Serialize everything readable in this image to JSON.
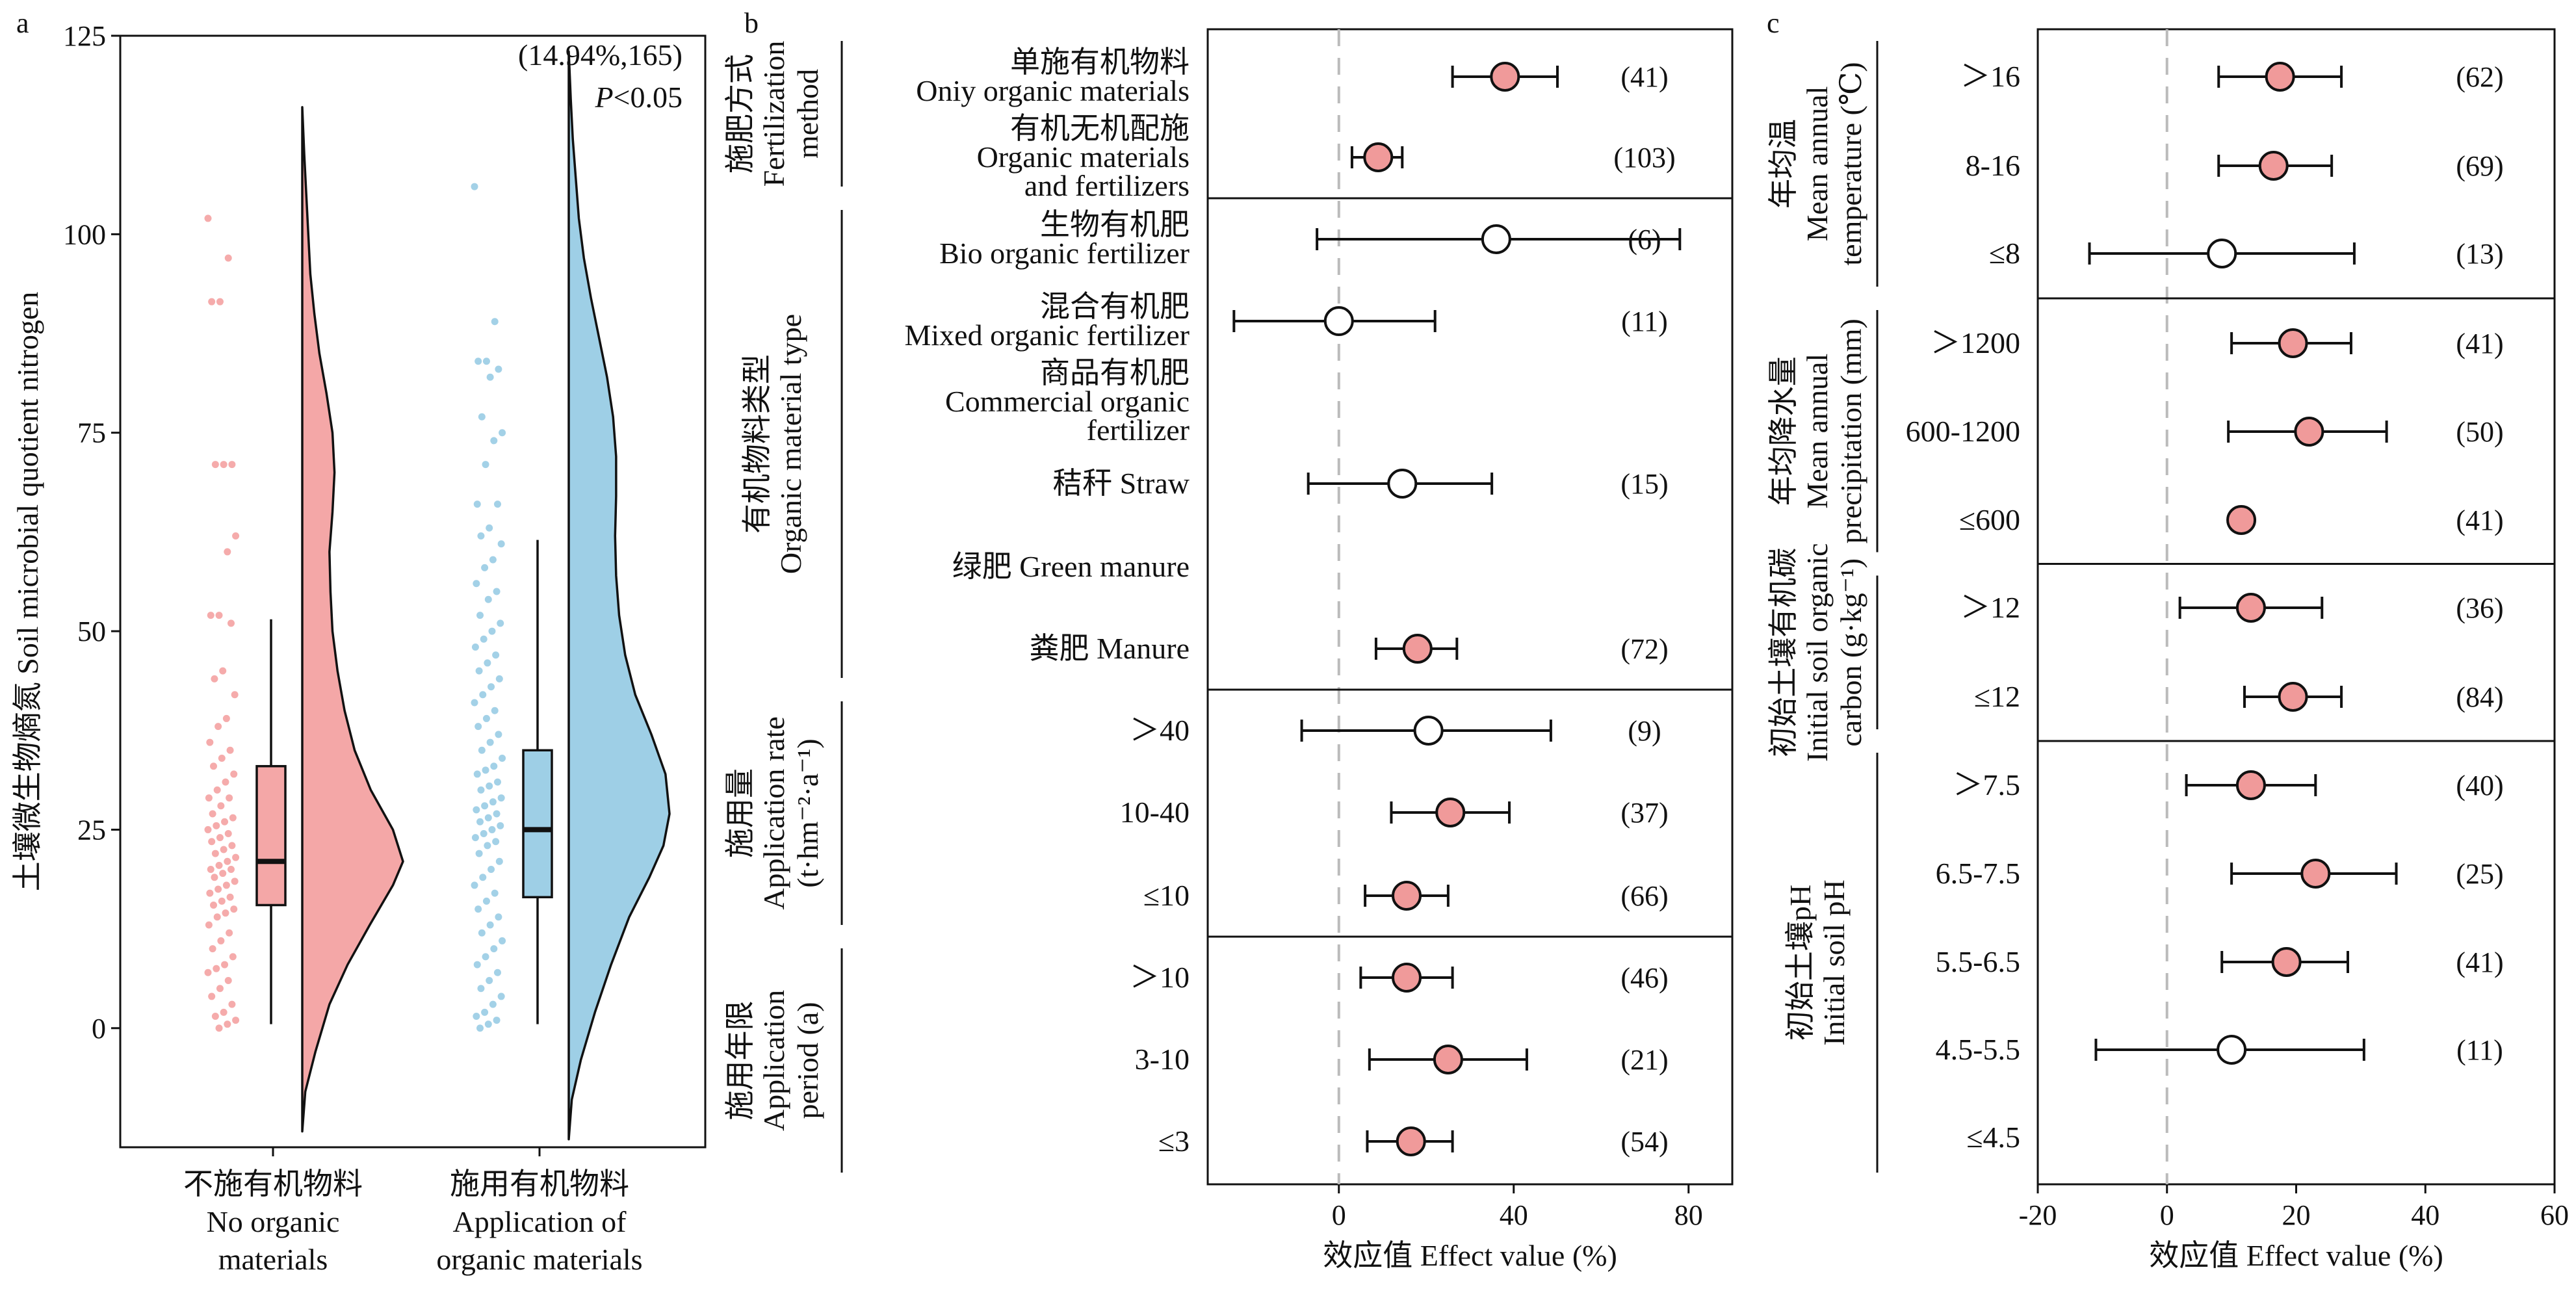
{
  "figure_tags": {
    "a": "a",
    "b": "b",
    "c": "c"
  },
  "colors": {
    "organic": "#F4A7A7",
    "none": "#F4A7A7",
    "applied": "#9ECFE6",
    "sig": "#F09A9A",
    "nonsig": "#FFFFFF",
    "ref": "#BBBBBB"
  },
  "chart_data": [
    {
      "panel": "a",
      "type": "raincloud",
      "ylabel": "土壤微生物熵氮 Soil microbial quotient nitrogen",
      "ylim": [
        -15,
        125
      ],
      "yticks": [
        0,
        25,
        50,
        75,
        100,
        125
      ],
      "annotation": {
        "stat": "(14.94%,165)",
        "p_italic": "P",
        "p_rest": "<0.05"
      },
      "groups": [
        {
          "label_cn": "不施有机物料",
          "label_en_1": "No organic",
          "label_en_2": "materials",
          "color": "#F4A7A7",
          "box": {
            "q1": 15.5,
            "median": 21.0,
            "q3": 33.0,
            "wlow": 0.5,
            "whigh": 51.5
          },
          "violin": {
            "ymin": -13,
            "ymax": 116,
            "levels": [
              -13,
              -8,
              -3,
              3,
              8,
              13,
              18,
              21,
              25,
              30,
              35,
              40,
              45,
              50,
              55,
              60,
              65,
              70,
              75,
              80,
              85,
              90,
              95,
              100,
              105,
              110,
              116
            ],
            "widths": [
              0,
              0.03,
              0.13,
              0.27,
              0.45,
              0.67,
              0.9,
              1.0,
              0.9,
              0.68,
              0.52,
              0.42,
              0.35,
              0.3,
              0.28,
              0.27,
              0.3,
              0.32,
              0.3,
              0.24,
              0.17,
              0.12,
              0.08,
              0.06,
              0.04,
              0.02,
              0
            ]
          },
          "points": [
            102,
            97,
            91.5,
            91.5,
            71,
            71,
            71,
            62,
            60,
            52,
            52,
            51,
            45,
            44,
            42,
            39,
            38,
            36,
            35,
            34,
            33,
            32,
            31,
            30,
            29,
            29,
            28,
            27,
            26.5,
            26,
            25.5,
            25,
            24.5,
            24,
            23.5,
            23,
            22.5,
            22,
            21.5,
            21,
            20.5,
            20,
            20,
            19.5,
            19,
            18.5,
            18,
            17.5,
            17,
            16.5,
            16,
            15.5,
            15,
            14.5,
            14,
            13,
            12,
            11,
            10,
            9,
            8,
            7.5,
            7,
            6,
            5,
            4,
            3,
            2,
            1.5,
            1,
            0.5,
            0
          ]
        },
        {
          "label_cn": "施用有机物料",
          "label_en_1": "Application of",
          "label_en_2": "organic materials",
          "color": "#9ECFE6",
          "box": {
            "q1": 16.5,
            "median": 25.0,
            "q3": 35.0,
            "wlow": 0.5,
            "whigh": 61.5
          },
          "violin": {
            "ymin": -14,
            "ymax": 123,
            "levels": [
              -14,
              -9,
              -4,
              2,
              8,
              14,
              19,
              23,
              27,
              32,
              37,
              42,
              47,
              52,
              57,
              62,
              67,
              72,
              77,
              82,
              87,
              92,
              97,
              102,
              107,
              112,
              117,
              123
            ],
            "widths": [
              0,
              0.03,
              0.12,
              0.26,
              0.42,
              0.6,
              0.8,
              0.94,
              1.0,
              0.96,
              0.82,
              0.66,
              0.56,
              0.5,
              0.47,
              0.46,
              0.47,
              0.47,
              0.44,
              0.38,
              0.3,
              0.22,
              0.15,
              0.1,
              0.07,
              0.04,
              0.02,
              0
            ]
          },
          "points": [
            106,
            89,
            84,
            84,
            83,
            82,
            77,
            75,
            74,
            71,
            66,
            66,
            63,
            62,
            61,
            59,
            58,
            56,
            55,
            54,
            52,
            51,
            50,
            49,
            48,
            47,
            46,
            45,
            44,
            43,
            42,
            41,
            40,
            39,
            38,
            37,
            36,
            35,
            34,
            33,
            32.5,
            32,
            31,
            30.5,
            30,
            29,
            28.5,
            28,
            27.5,
            27,
            26.5,
            26,
            25.5,
            25,
            24.5,
            24,
            23.5,
            23,
            22,
            21,
            20,
            19,
            18,
            17,
            16,
            15,
            14,
            13,
            12,
            11,
            10,
            9,
            8,
            7,
            6,
            5,
            4,
            3,
            2,
            1.5,
            1,
            0.5,
            0
          ]
        }
      ]
    },
    {
      "panel": "b",
      "type": "forest",
      "xlabel": "效应值 Effect value (%)",
      "xlim": [
        -30,
        90
      ],
      "xticks": [
        0,
        40,
        80
      ],
      "sections": [
        {
          "title_cn": "施肥方式",
          "title_en_1": "Fertilization",
          "title_en_2": "method",
          "rows": [
            0,
            1
          ]
        },
        {
          "title_cn": "有机物料类型",
          "title_en_1": "Organic material type",
          "title_en_2": "",
          "rows": [
            2,
            3,
            4,
            5,
            6,
            7
          ]
        },
        {
          "title_cn": "施用量",
          "title_en_1": "Application rate",
          "title_en_2": "(t·hm⁻²·a⁻¹)",
          "rows": [
            8,
            9,
            10
          ]
        },
        {
          "title_cn": "施用年限",
          "title_en_1": "Application",
          "title_en_2": "period (a)",
          "rows": [
            11,
            12,
            13
          ]
        }
      ],
      "rows": [
        {
          "lines": [
            "单施有机物料",
            "Oniy organic materials"
          ],
          "mean": 38,
          "lo": 26,
          "hi": 50,
          "n": "(41)",
          "sig": true
        },
        {
          "lines": [
            "有机无机配施",
            "Organic materials",
            "and fertilizers"
          ],
          "mean": 9,
          "lo": 3,
          "hi": 14.5,
          "n": "(103)",
          "sig": true
        },
        {
          "lines": [
            "生物有机肥",
            "Bio organic fertilizer"
          ],
          "mean": 36,
          "lo": -5,
          "hi": 78,
          "n": "(6)",
          "sig": false
        },
        {
          "lines": [
            "混合有机肥",
            "Mixed organic fertilizer"
          ],
          "mean": 0,
          "lo": -24,
          "hi": 22,
          "n": "(11)",
          "sig": false
        },
        {
          "lines": [
            "商品有机肥",
            "Commercial organic",
            "fertilizer"
          ],
          "mean": null,
          "lo": null,
          "hi": null,
          "n": "",
          "sig": false
        },
        {
          "lines": [
            "秸秆 Straw"
          ],
          "mean": 14.5,
          "lo": -7,
          "hi": 35,
          "n": "(15)",
          "sig": false
        },
        {
          "lines": [
            "绿肥 Green manure"
          ],
          "mean": null,
          "lo": null,
          "hi": null,
          "n": "",
          "sig": false
        },
        {
          "lines": [
            "粪肥 Manure"
          ],
          "mean": 18,
          "lo": 8.5,
          "hi": 27,
          "n": "(72)",
          "sig": true
        },
        {
          "lines": [
            "＞40"
          ],
          "mean": 20.5,
          "lo": -8.5,
          "hi": 48.5,
          "n": "(9)",
          "sig": false
        },
        {
          "lines": [
            "10-40"
          ],
          "mean": 25.5,
          "lo": 12,
          "hi": 39,
          "n": "(37)",
          "sig": true
        },
        {
          "lines": [
            "≤10"
          ],
          "mean": 15.5,
          "lo": 6,
          "hi": 25,
          "n": "(66)",
          "sig": true
        },
        {
          "lines": [
            "＞10"
          ],
          "mean": 15.5,
          "lo": 5,
          "hi": 26,
          "n": "(46)",
          "sig": true
        },
        {
          "lines": [
            "3-10"
          ],
          "mean": 25,
          "lo": 7,
          "hi": 43,
          "n": "(21)",
          "sig": true
        },
        {
          "lines": [
            "≤3"
          ],
          "mean": 16.5,
          "lo": 6.5,
          "hi": 26,
          "n": "(54)",
          "sig": true
        }
      ]
    },
    {
      "panel": "c",
      "type": "forest",
      "xlabel": "效应值 Effect value (%)",
      "xlim": [
        -20,
        60
      ],
      "xticks": [
        -20,
        0,
        20,
        40,
        60
      ],
      "sections": [
        {
          "title_cn": "年均温",
          "title_en_1": "Mean annual",
          "title_en_2": "temperature (℃)",
          "rows": [
            0,
            1,
            2
          ]
        },
        {
          "title_cn": "年均降水量",
          "title_en_1": "Mean annual",
          "title_en_2": "precipitation (mm)",
          "rows": [
            3,
            4,
            5
          ]
        },
        {
          "title_cn": "初始土壤有机碳",
          "title_en_1": "Initial soil organic",
          "title_en_2": "carbon (g·kg⁻¹)",
          "rows": [
            6,
            7
          ]
        },
        {
          "title_cn": "初始土壤pH",
          "title_en_1": "Initial soil pH",
          "title_en_2": "",
          "rows": [
            8,
            9,
            10,
            11,
            12
          ]
        }
      ],
      "rows": [
        {
          "lines": [
            "＞16"
          ],
          "mean": 17.5,
          "lo": 8,
          "hi": 27,
          "n": "(62)",
          "sig": true
        },
        {
          "lines": [
            "8-16"
          ],
          "mean": 16.5,
          "lo": 8,
          "hi": 25.5,
          "n": "(69)",
          "sig": true
        },
        {
          "lines": [
            "≤8"
          ],
          "mean": 8.5,
          "lo": -12,
          "hi": 29,
          "n": "(13)",
          "sig": false
        },
        {
          "lines": [
            "＞1200"
          ],
          "mean": 19.5,
          "lo": 10,
          "hi": 28.5,
          "n": "(41)",
          "sig": true
        },
        {
          "lines": [
            "600-1200"
          ],
          "mean": 22,
          "lo": 9.5,
          "hi": 34,
          "n": "(50)",
          "sig": true
        },
        {
          "lines": [
            "≤600"
          ],
          "mean": 11.5,
          "lo": 10.5,
          "hi": 12.5,
          "n": "(41)",
          "sig": true
        },
        {
          "lines": [
            "＞12"
          ],
          "mean": 13,
          "lo": 2,
          "hi": 24,
          "n": "(36)",
          "sig": true
        },
        {
          "lines": [
            "≤12"
          ],
          "mean": 19.5,
          "lo": 12,
          "hi": 27,
          "n": "(84)",
          "sig": true
        },
        {
          "lines": [
            "＞7.5"
          ],
          "mean": 13,
          "lo": 3,
          "hi": 23,
          "n": "(40)",
          "sig": true
        },
        {
          "lines": [
            "6.5-7.5"
          ],
          "mean": 23,
          "lo": 10,
          "hi": 35.5,
          "n": "(25)",
          "sig": true
        },
        {
          "lines": [
            "5.5-6.5"
          ],
          "mean": 18.5,
          "lo": 8.5,
          "hi": 28,
          "n": "(41)",
          "sig": true
        },
        {
          "lines": [
            "4.5-5.5"
          ],
          "mean": 10,
          "lo": -11,
          "hi": 30.5,
          "n": "(11)",
          "sig": false
        },
        {
          "lines": [
            "≤4.5"
          ],
          "mean": null,
          "lo": null,
          "hi": null,
          "n": "",
          "sig": false
        }
      ]
    }
  ]
}
